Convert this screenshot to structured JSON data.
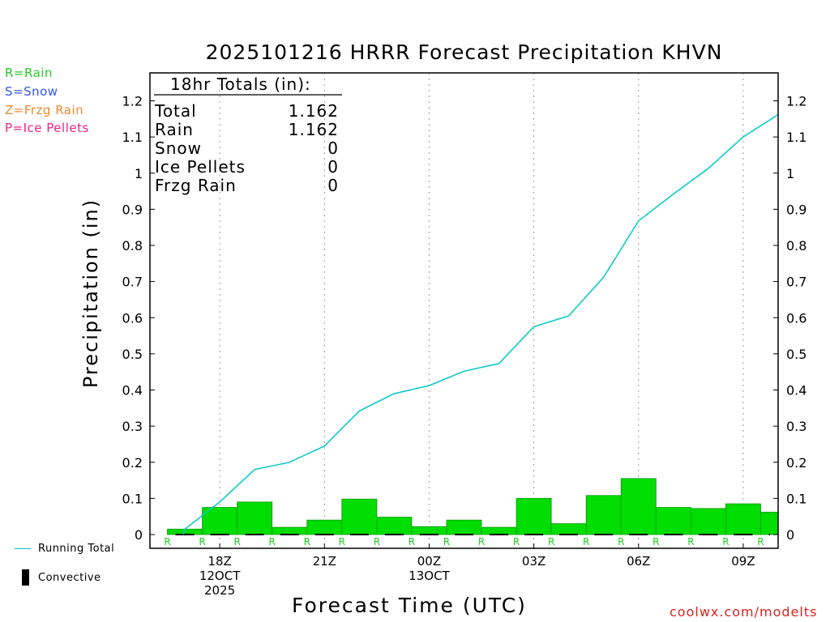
{
  "title": "2025101216 HRRR Forecast Precipitation KHVN",
  "ptype_legend": [
    {
      "text": "R=Rain",
      "color": "#22cc22"
    },
    {
      "text": "S=Snow",
      "color": "#3355ee"
    },
    {
      "text": "Z=Frzg Rain",
      "color": "#ee8833"
    },
    {
      "text": "P=Ice Pellets",
      "color": "#ee2288"
    }
  ],
  "totals_box": {
    "header": "18hr Totals (in):",
    "rows": [
      {
        "label": "Total",
        "value": "1.162"
      },
      {
        "label": "Rain",
        "value": "1.162"
      },
      {
        "label": "Snow",
        "value": "0"
      },
      {
        "label": "Ice Pellets",
        "value": "0"
      },
      {
        "label": "Frzg Rain",
        "value": "0"
      }
    ]
  },
  "key": {
    "running_total": "Running Total",
    "convective": "Convective"
  },
  "credit": "coolwx.com/modelts",
  "colors": {
    "running_total": "#00c8c8",
    "bars": "#00dd00",
    "bar_edge": "#009900",
    "rain_letter": "#22cc22"
  },
  "chart_data": {
    "type": "bar",
    "ylabel": "Precipitation (in)",
    "xlabel": "Forecast Time (UTC)",
    "ylim": [
      0,
      1.26
    ],
    "yticks": [
      0,
      0.1,
      0.2,
      0.3,
      0.4,
      0.5,
      0.6,
      0.7,
      0.8,
      0.9,
      1,
      1.1,
      1.2
    ],
    "ytick_labels": [
      "0",
      "0.1",
      "0.2",
      "0.3",
      "0.4",
      "0.5",
      "0.6",
      "0.7",
      "0.8",
      "0.9",
      "1",
      "1.1",
      "1.2"
    ],
    "xlim_hours": [
      16,
      34
    ],
    "x_ticks": [
      {
        "hour": 18,
        "lines": [
          "18Z",
          "12OCT",
          "2025"
        ]
      },
      {
        "hour": 21,
        "lines": [
          "21Z"
        ]
      },
      {
        "hour": 24,
        "lines": [
          "00Z",
          "13OCT"
        ]
      },
      {
        "hour": 27,
        "lines": [
          "03Z"
        ]
      },
      {
        "hour": 30,
        "lines": [
          "06Z"
        ]
      },
      {
        "hour": 33,
        "lines": [
          "09Z"
        ]
      }
    ],
    "grid": "vertical dotted at tick hours",
    "series": [
      {
        "name": "Running Total",
        "type": "line",
        "hours": [
          17,
          18,
          19,
          20,
          21,
          22,
          23,
          24,
          25,
          26,
          27,
          28,
          29,
          30,
          31,
          32,
          33,
          34
        ],
        "values": [
          0.015,
          0.09,
          0.18,
          0.2,
          0.245,
          0.342,
          0.39,
          0.412,
          0.452,
          0.473,
          0.575,
          0.605,
          0.712,
          0.868,
          0.942,
          1.013,
          1.1,
          1.162
        ]
      },
      {
        "name": "Hourly Precipitation",
        "type": "bar",
        "hours": [
          17,
          18,
          19,
          20,
          21,
          22,
          23,
          24,
          25,
          26,
          27,
          28,
          29,
          30,
          31,
          32,
          33,
          34
        ],
        "values": [
          0.015,
          0.075,
          0.09,
          0.02,
          0.04,
          0.098,
          0.048,
          0.022,
          0.04,
          0.02,
          0.1,
          0.03,
          0.108,
          0.155,
          0.075,
          0.072,
          0.085,
          0.062
        ],
        "ptype": [
          "R",
          "R",
          "R",
          "R",
          "R",
          "R",
          "R",
          "R",
          "R",
          "R",
          "R",
          "R",
          "R",
          "R",
          "R",
          "R",
          "R",
          "R"
        ]
      }
    ]
  }
}
